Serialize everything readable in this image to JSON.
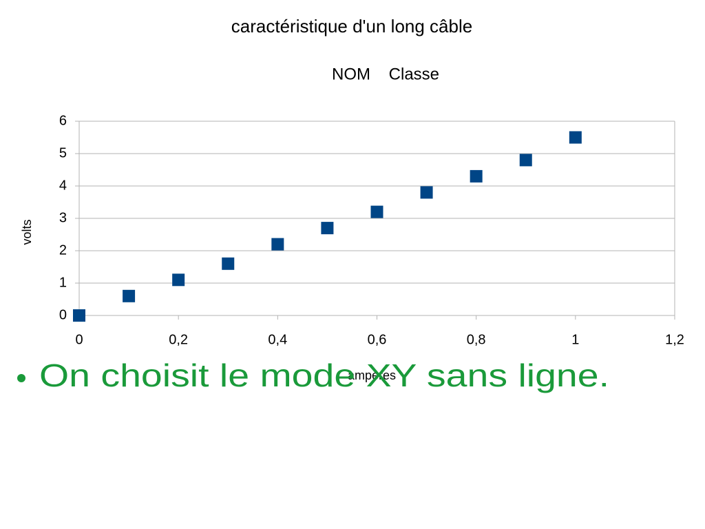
{
  "chart_data": {
    "type": "scatter",
    "title": "caractéristique d'un long câble",
    "subtitle": "NOM    Classe",
    "x_label": "ampères",
    "y_label": "volts",
    "x": [
      0,
      0.1,
      0.2,
      0.3,
      0.4,
      0.5,
      0.6,
      0.7,
      0.8,
      0.9,
      1
    ],
    "values": [
      0,
      0.6,
      1.1,
      1.6,
      2.2,
      2.7,
      3.2,
      3.8,
      4.3,
      4.8,
      5.5
    ],
    "color": "#004586",
    "xlim": [
      0,
      1.2
    ],
    "xticks": [
      0,
      {
        "value": 0.2,
        "label": "0,2"
      },
      {
        "value": 0.4,
        "label": "0,4"
      },
      {
        "value": 0.6,
        "label": "0,6"
      },
      {
        "value": 0.8,
        "label": "0,8"
      },
      1,
      {
        "value": 1.2,
        "label": "1,2"
      }
    ],
    "ylim": [
      0,
      6
    ],
    "yticks": [
      0,
      1,
      2,
      3,
      4,
      5,
      6
    ],
    "grid": true
  },
  "slide": {
    "bullets": [
      "On choisit le mode XY sans ligne."
    ]
  }
}
